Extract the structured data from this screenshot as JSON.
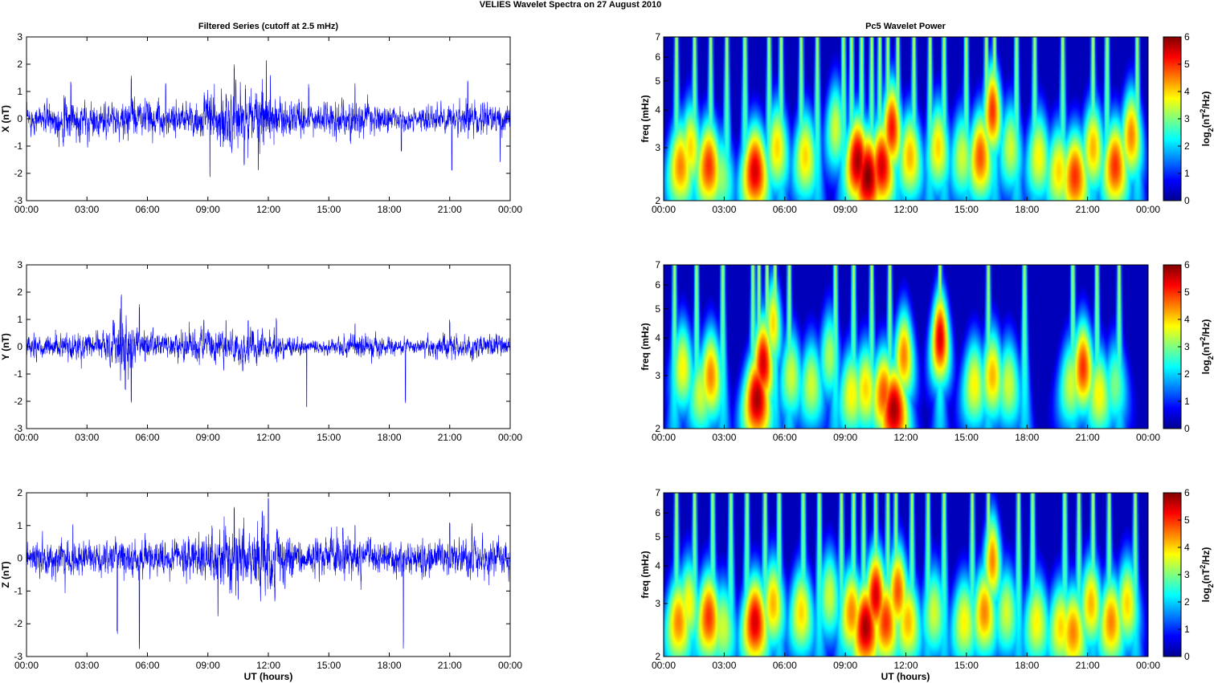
{
  "figure": {
    "suptitle": "VELIES Wavelet Spectra on 27 August    2010",
    "left_title": "Filtered Series (cutoff at 2.5 mHz)",
    "right_title": "Pc5 Wavelet Power",
    "xlabel": "UT (hours)",
    "colors": {
      "trace": "#0000ff",
      "axes": "#000000",
      "background": "#ffffff"
    }
  },
  "chart_data": [
    {
      "type": "line",
      "panel": "X",
      "ylabel": "X (nT)",
      "ylim": [
        -3,
        3
      ],
      "yticks": [
        -3,
        -2,
        -1,
        0,
        1,
        2,
        3
      ],
      "xticks": [
        "00:00",
        "03:00",
        "06:00",
        "09:00",
        "12:00",
        "15:00",
        "18:00",
        "21:00",
        "00:00"
      ],
      "xlim_hours": [
        0,
        24
      ],
      "series": [
        {
          "envelope": [
            [
              0,
              0.35
            ],
            [
              1,
              0.45
            ],
            [
              2,
              0.6
            ],
            [
              3,
              0.5
            ],
            [
              4,
              0.45
            ],
            [
              5,
              0.55
            ],
            [
              6,
              0.5
            ],
            [
              7,
              0.45
            ],
            [
              8,
              0.5
            ],
            [
              9,
              0.7
            ],
            [
              10,
              0.95
            ],
            [
              10.5,
              0.9
            ],
            [
              11,
              0.7
            ],
            [
              11.5,
              1.1
            ],
            [
              12,
              0.9
            ],
            [
              12.5,
              0.6
            ],
            [
              13,
              0.5
            ],
            [
              14,
              0.4
            ],
            [
              15,
              0.45
            ],
            [
              16,
              0.55
            ],
            [
              17,
              0.45
            ],
            [
              18,
              0.35
            ],
            [
              19,
              0.3
            ],
            [
              20,
              0.35
            ],
            [
              21,
              0.4
            ],
            [
              22,
              0.45
            ],
            [
              23,
              0.4
            ],
            [
              24,
              0.4
            ]
          ],
          "spikes": [
            [
              2.2,
              1.4
            ],
            [
              5.2,
              1.6
            ],
            [
              6.9,
              1.3
            ],
            [
              9.1,
              -2.2
            ],
            [
              10.3,
              2.1
            ],
            [
              10.8,
              -1.8
            ],
            [
              11.5,
              -2.0
            ],
            [
              11.9,
              2.2
            ],
            [
              12.1,
              1.7
            ],
            [
              14.0,
              1.3
            ],
            [
              16.3,
              1.3
            ],
            [
              18.6,
              -1.2
            ],
            [
              21.1,
              -2.0
            ],
            [
              21.9,
              1.4
            ],
            [
              23.5,
              -1.6
            ]
          ]
        }
      ]
    },
    {
      "type": "line",
      "panel": "Y",
      "ylabel": "Y (nT)",
      "ylim": [
        -3,
        3
      ],
      "yticks": [
        -3,
        -2,
        -1,
        0,
        1,
        2,
        3
      ],
      "xticks": [
        "00:00",
        "03:00",
        "06:00",
        "09:00",
        "12:00",
        "15:00",
        "18:00",
        "21:00",
        "00:00"
      ],
      "xlim_hours": [
        0,
        24
      ],
      "series": [
        {
          "envelope": [
            [
              0,
              0.3
            ],
            [
              1,
              0.3
            ],
            [
              2,
              0.35
            ],
            [
              3,
              0.4
            ],
            [
              4,
              0.45
            ],
            [
              4.5,
              0.9
            ],
            [
              5,
              0.8
            ],
            [
              5.5,
              0.5
            ],
            [
              6,
              0.4
            ],
            [
              7,
              0.35
            ],
            [
              8,
              0.4
            ],
            [
              9,
              0.5
            ],
            [
              10,
              0.45
            ],
            [
              11,
              0.5
            ],
            [
              12,
              0.4
            ],
            [
              13,
              0.3
            ],
            [
              14,
              0.2
            ],
            [
              15,
              0.2
            ],
            [
              16,
              0.3
            ],
            [
              17,
              0.35
            ],
            [
              18,
              0.25
            ],
            [
              19,
              0.2
            ],
            [
              20,
              0.25
            ],
            [
              21,
              0.35
            ],
            [
              22,
              0.3
            ],
            [
              23,
              0.3
            ],
            [
              24,
              0.3
            ]
          ],
          "spikes": [
            [
              4.7,
              2.0
            ],
            [
              4.9,
              -1.6
            ],
            [
              5.2,
              -2.1
            ],
            [
              5.6,
              1.6
            ],
            [
              8.8,
              1.0
            ],
            [
              9.9,
              1.0
            ],
            [
              11.0,
              1.0
            ],
            [
              12.4,
              1.1
            ],
            [
              13.9,
              -2.5
            ],
            [
              16.3,
              0.9
            ],
            [
              18.8,
              -2.1
            ],
            [
              21.0,
              1.0
            ]
          ]
        }
      ]
    },
    {
      "type": "line",
      "panel": "Z",
      "ylabel": "Z (nT)",
      "ylim": [
        -3,
        2
      ],
      "yticks": [
        -3,
        -2,
        -1,
        0,
        1,
        2
      ],
      "xticks": [
        "00:00",
        "03:00",
        "06:00",
        "09:00",
        "12:00",
        "15:00",
        "18:00",
        "21:00",
        "00:00"
      ],
      "xlim_hours": [
        0,
        24
      ],
      "series": [
        {
          "envelope": [
            [
              0,
              0.3
            ],
            [
              1,
              0.4
            ],
            [
              2,
              0.45
            ],
            [
              3,
              0.4
            ],
            [
              4,
              0.35
            ],
            [
              5,
              0.5
            ],
            [
              6,
              0.45
            ],
            [
              7,
              0.4
            ],
            [
              8,
              0.45
            ],
            [
              9,
              0.65
            ],
            [
              10,
              0.8
            ],
            [
              10.5,
              0.75
            ],
            [
              11,
              0.6
            ],
            [
              11.7,
              0.95
            ],
            [
              12.3,
              0.8
            ],
            [
              13,
              0.5
            ],
            [
              14,
              0.4
            ],
            [
              15,
              0.45
            ],
            [
              16,
              0.55
            ],
            [
              17,
              0.45
            ],
            [
              18,
              0.35
            ],
            [
              19,
              0.35
            ],
            [
              20,
              0.4
            ],
            [
              21,
              0.45
            ],
            [
              22,
              0.45
            ],
            [
              23,
              0.4
            ],
            [
              24,
              0.4
            ]
          ],
          "spikes": [
            [
              2.3,
              1.1
            ],
            [
              4.5,
              -2.4
            ],
            [
              5.6,
              -2.8
            ],
            [
              9.5,
              -1.8
            ],
            [
              10.3,
              1.6
            ],
            [
              10.5,
              -1.4
            ],
            [
              11.7,
              1.5
            ],
            [
              12.0,
              1.9
            ],
            [
              15.7,
              1.0
            ],
            [
              16.3,
              1.1
            ],
            [
              18.7,
              -2.8
            ],
            [
              21.0,
              1.1
            ],
            [
              22.1,
              1.1
            ]
          ]
        }
      ]
    },
    {
      "type": "heatmap",
      "panel": "X",
      "ylabel": "freq (mHz)",
      "yscale": "log",
      "ylim": [
        2,
        7
      ],
      "yticks": [
        2,
        3,
        4,
        5,
        6,
        7
      ],
      "xticks": [
        "00:00",
        "03:00",
        "06:00",
        "09:00",
        "12:00",
        "15:00",
        "18:00",
        "21:00",
        "00:00"
      ],
      "xlim_hours": [
        0,
        24
      ],
      "colorbar": {
        "label": "log2(nT^2/Hz)",
        "range": [
          0,
          6
        ],
        "ticks": [
          0,
          1,
          2,
          3,
          4,
          5,
          6
        ],
        "colormap": "jet"
      },
      "blobs": [
        [
          0.8,
          2.6,
          4.5
        ],
        [
          1.3,
          3.0,
          4.0
        ],
        [
          2.2,
          2.6,
          5.0
        ],
        [
          2.8,
          2.4,
          3.2
        ],
        [
          4.5,
          2.5,
          5.5
        ],
        [
          5.6,
          3.0,
          4.0
        ],
        [
          7.0,
          2.8,
          4.0
        ],
        [
          8.5,
          3.5,
          3.5
        ],
        [
          9.6,
          2.7,
          5.8
        ],
        [
          10.1,
          2.4,
          6.0
        ],
        [
          10.8,
          2.6,
          5.5
        ],
        [
          11.3,
          3.5,
          5.2
        ],
        [
          12.2,
          2.8,
          4.2
        ],
        [
          13.6,
          3.0,
          4.0
        ],
        [
          14.8,
          2.8,
          3.5
        ],
        [
          15.7,
          2.8,
          4.8
        ],
        [
          16.3,
          4.0,
          5.0
        ],
        [
          17.2,
          3.0,
          3.5
        ],
        [
          18.6,
          2.8,
          3.8
        ],
        [
          19.6,
          2.5,
          4.0
        ],
        [
          20.4,
          2.4,
          5.0
        ],
        [
          21.3,
          3.0,
          4.2
        ],
        [
          22.4,
          2.6,
          5.0
        ],
        [
          23.2,
          3.3,
          4.5
        ]
      ],
      "streaks": [
        0.6,
        1.5,
        2.3,
        3.1,
        4.0,
        5.2,
        5.8,
        6.8,
        7.6,
        8.9,
        9.3,
        9.8,
        10.3,
        10.7,
        11.1,
        11.6,
        12.4,
        13.2,
        13.9,
        15.0,
        16.0,
        16.4,
        17.5,
        18.4,
        19.8,
        21.3,
        22.0,
        23.5
      ]
    },
    {
      "type": "heatmap",
      "panel": "Y",
      "ylabel": "freq (mHz)",
      "yscale": "log",
      "ylim": [
        2,
        7
      ],
      "yticks": [
        2,
        3,
        4,
        5,
        6,
        7
      ],
      "xticks": [
        "00:00",
        "03:00",
        "06:00",
        "09:00",
        "12:00",
        "15:00",
        "18:00",
        "21:00",
        "00:00"
      ],
      "xlim_hours": [
        0,
        24
      ],
      "colorbar": {
        "label": "log2(nT^2/Hz)",
        "range": [
          0,
          6
        ],
        "ticks": [
          0,
          1,
          2,
          3,
          4,
          5,
          6
        ],
        "colormap": "jet"
      },
      "blobs": [
        [
          0.9,
          3.2,
          3.8
        ],
        [
          1.8,
          2.6,
          3.5
        ],
        [
          2.3,
          3.0,
          4.5
        ],
        [
          4.6,
          2.5,
          5.8
        ],
        [
          4.9,
          3.3,
          5.5
        ],
        [
          5.4,
          4.5,
          4.0
        ],
        [
          6.3,
          3.0,
          3.5
        ],
        [
          7.3,
          2.8,
          3.5
        ],
        [
          8.2,
          3.5,
          3.3
        ],
        [
          9.3,
          2.6,
          3.8
        ],
        [
          10.0,
          2.7,
          4.0
        ],
        [
          10.9,
          2.6,
          4.8
        ],
        [
          11.4,
          2.3,
          5.8
        ],
        [
          11.9,
          3.5,
          4.5
        ],
        [
          13.7,
          4.0,
          5.5
        ],
        [
          15.4,
          2.8,
          3.8
        ],
        [
          16.3,
          3.0,
          4.2
        ],
        [
          17.1,
          2.8,
          3.5
        ],
        [
          20.2,
          2.8,
          3.5
        ],
        [
          20.8,
          3.2,
          5.0
        ],
        [
          21.6,
          2.6,
          3.8
        ],
        [
          22.4,
          2.8,
          3.0
        ]
      ],
      "streaks": [
        0.5,
        1.6,
        2.9,
        4.4,
        4.7,
        5.1,
        5.5,
        6.2,
        8.5,
        9.4,
        10.3,
        11.2,
        13.7,
        16.1,
        17.9,
        20.3,
        21.5,
        22.6
      ]
    },
    {
      "type": "heatmap",
      "panel": "Z",
      "ylabel": "freq (mHz)",
      "yscale": "log",
      "ylim": [
        2,
        7
      ],
      "yticks": [
        2,
        3,
        4,
        5,
        6,
        7
      ],
      "xticks": [
        "00:00",
        "03:00",
        "06:00",
        "09:00",
        "12:00",
        "15:00",
        "18:00",
        "21:00",
        "00:00"
      ],
      "xlim_hours": [
        0,
        24
      ],
      "colorbar": {
        "label": "log2(nT^2/Hz)",
        "range": [
          0,
          6
        ],
        "ticks": [
          0,
          1,
          2,
          3,
          4,
          5,
          6
        ],
        "colormap": "jet"
      },
      "blobs": [
        [
          0.7,
          2.6,
          4.5
        ],
        [
          1.2,
          3.0,
          3.8
        ],
        [
          2.2,
          2.7,
          5.0
        ],
        [
          2.9,
          2.5,
          3.5
        ],
        [
          4.5,
          2.6,
          5.5
        ],
        [
          5.4,
          3.0,
          4.2
        ],
        [
          6.8,
          2.8,
          4.0
        ],
        [
          8.2,
          3.2,
          3.5
        ],
        [
          9.3,
          2.8,
          4.5
        ],
        [
          10.0,
          2.5,
          5.8
        ],
        [
          10.5,
          3.2,
          5.5
        ],
        [
          11.0,
          2.6,
          5.0
        ],
        [
          11.6,
          3.3,
          4.8
        ],
        [
          12.1,
          2.6,
          4.2
        ],
        [
          13.4,
          2.8,
          3.5
        ],
        [
          14.9,
          2.6,
          3.8
        ],
        [
          15.9,
          2.8,
          4.5
        ],
        [
          16.3,
          4.2,
          4.5
        ],
        [
          17.0,
          2.8,
          3.5
        ],
        [
          18.5,
          2.6,
          3.8
        ],
        [
          19.7,
          2.5,
          4.0
        ],
        [
          20.3,
          2.4,
          4.5
        ],
        [
          21.2,
          3.0,
          4.2
        ],
        [
          22.2,
          2.6,
          4.5
        ],
        [
          23.0,
          3.0,
          4.0
        ]
      ],
      "streaks": [
        0.6,
        1.5,
        2.4,
        3.3,
        4.1,
        5.0,
        5.7,
        6.9,
        7.7,
        8.8,
        9.4,
        9.9,
        10.5,
        11.1,
        11.5,
        12.3,
        13.1,
        13.9,
        15.3,
        16.1,
        17.6,
        18.3,
        19.9,
        20.6,
        21.3,
        22.1,
        23.4
      ]
    }
  ]
}
